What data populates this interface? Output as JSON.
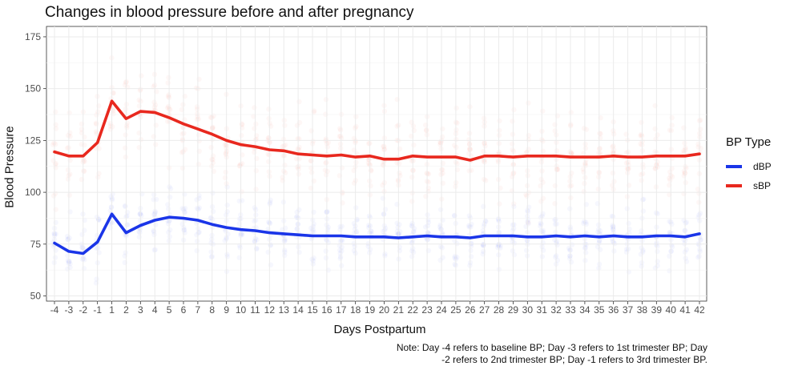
{
  "chart_data": {
    "type": "line",
    "title": "Changes in blood pressure before and after pregnancy",
    "xlabel": "Days Postpartum",
    "ylabel": "Blood Pressure",
    "ylim": [
      47.5,
      180
    ],
    "y_ticks": [
      50,
      75,
      100,
      125,
      150,
      175
    ],
    "categories": [
      "-4",
      "-3",
      "-2",
      "-1",
      "1",
      "2",
      "3",
      "4",
      "5",
      "6",
      "7",
      "8",
      "9",
      "10",
      "11",
      "12",
      "13",
      "14",
      "15",
      "16",
      "17",
      "18",
      "19",
      "20",
      "21",
      "22",
      "23",
      "24",
      "25",
      "26",
      "27",
      "28",
      "29",
      "30",
      "31",
      "32",
      "33",
      "34",
      "35",
      "36",
      "37",
      "38",
      "39",
      "40",
      "41",
      "42"
    ],
    "legend_title": "BP Type",
    "legend_position": "right",
    "grid": true,
    "series": [
      {
        "name": "dBP",
        "color": "#1a35e8",
        "values": [
          75.5,
          71.5,
          70.5,
          76,
          89.5,
          80.5,
          84,
          86.5,
          88,
          87.5,
          86.5,
          84.5,
          83,
          82,
          81.5,
          80.5,
          80,
          79.5,
          79,
          79,
          79,
          78.5,
          78.5,
          78.5,
          78,
          78.5,
          79,
          78.5,
          78.5,
          78,
          79,
          79,
          79,
          78.5,
          78.5,
          79,
          78.5,
          79,
          78.5,
          79,
          78.5,
          78.5,
          79,
          79,
          78.5,
          80
        ]
      },
      {
        "name": "sBP",
        "color": "#e8281e",
        "values": [
          119.5,
          117.5,
          117.5,
          124,
          144,
          135.5,
          139,
          138.5,
          136,
          133,
          130.5,
          128,
          125,
          123,
          122,
          120.5,
          120,
          118.5,
          118,
          117.5,
          118,
          117,
          117.5,
          116,
          116,
          117.5,
          117,
          117,
          117,
          115.5,
          117.5,
          117.5,
          117,
          117.5,
          117.5,
          117.5,
          117,
          117,
          117,
          117.5,
          117,
          117,
          117.5,
          117.5,
          117.5,
          118.5
        ]
      }
    ],
    "note": "Note: Day -4 refers to baseline BP; Day -3 refers to 1st trimester BP; Day -2 refers to 2nd trimester BP; Day -1 refers to 3rd trimester BP.",
    "note_lines": [
      "Note: Day -4 refers to baseline BP; Day -3 refers to 1st trimester BP; Day",
      "-2 refers to 2nd trimester BP; Day -1 refers to 3rd trimester BP."
    ]
  }
}
